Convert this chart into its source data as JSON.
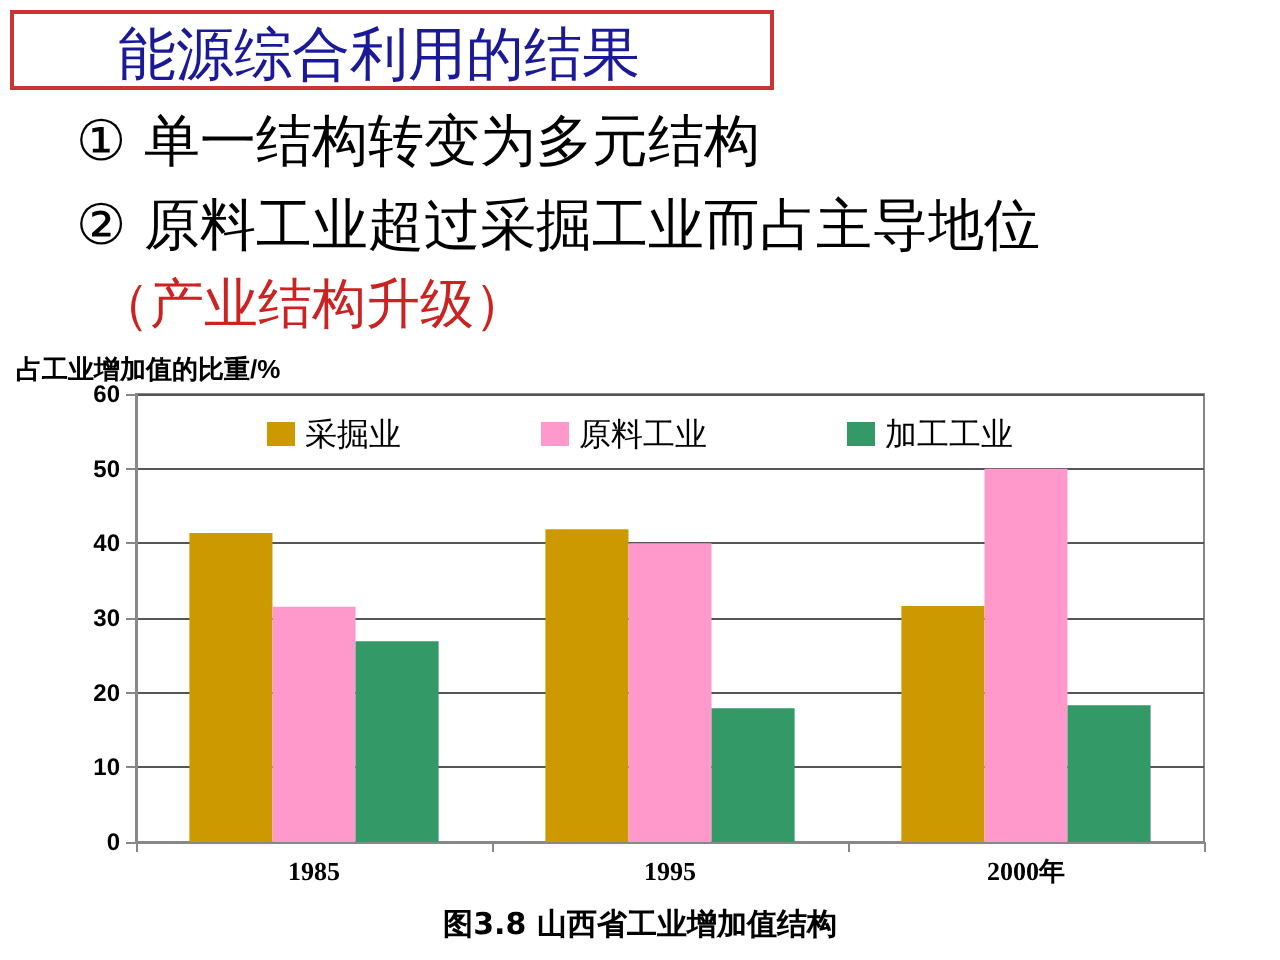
{
  "chart_data": {
    "type": "bar",
    "title": "能源综合利用的结果",
    "annotations": [
      "① 单一结构转变为多元结构",
      "② 原料工业超过采掘工业而占主导地位",
      "（产业结构升级）",
      "图3.8  山西省工业增加值结构"
    ],
    "ylabel": "占工业增加值的比重/%",
    "categories": [
      "1985",
      "1995",
      "2000年"
    ],
    "series": [
      {
        "name": "采掘业",
        "color": "#cc9900",
        "values": [
          41.4,
          41.9,
          31.6
        ]
      },
      {
        "name": "原料工业",
        "color": "#ff99cc",
        "values": [
          31.5,
          40.0,
          50.0
        ]
      },
      {
        "name": "加工工业",
        "color": "#339966",
        "values": [
          26.9,
          17.9,
          18.3
        ]
      }
    ],
    "ylim": [
      0,
      60
    ],
    "yticks": [
      0,
      10,
      20,
      30,
      40,
      50,
      60
    ],
    "grid": "y",
    "legend": "top"
  }
}
